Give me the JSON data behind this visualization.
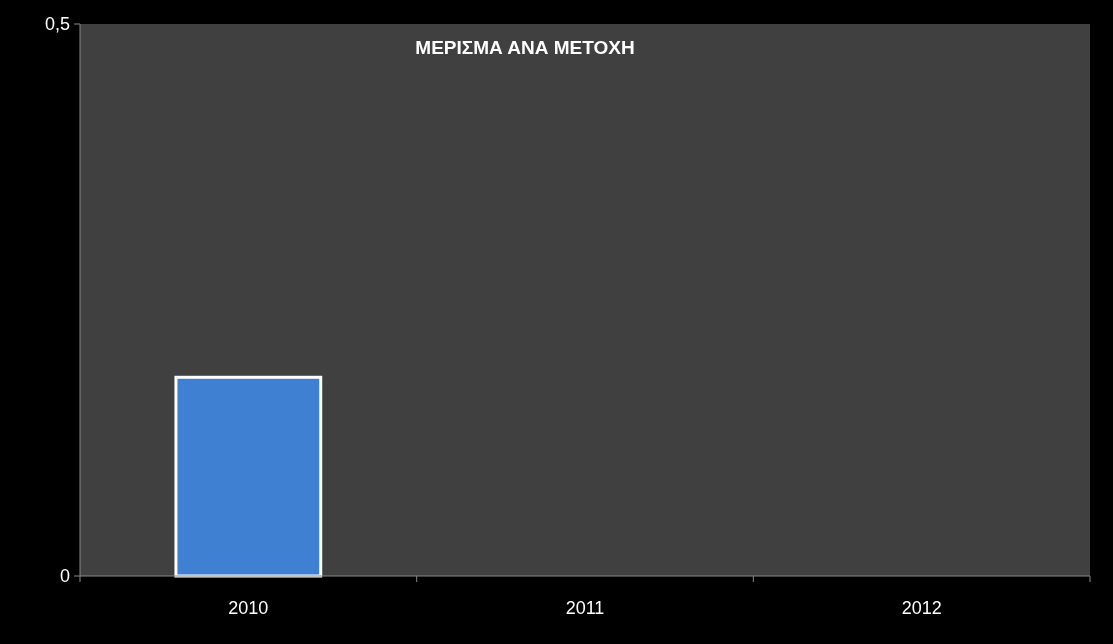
{
  "chart_data": {
    "type": "bar",
    "title": "ΜΕΡΙΣΜΑ ΑΝΑ ΜΕΤΟΧΗ",
    "categories": [
      "2010",
      "2011",
      "2012"
    ],
    "values": [
      0.18,
      0,
      0
    ],
    "color": "#3f80d2",
    "ylim": [
      0,
      0.5
    ],
    "yticks": [
      0,
      {
        "value": 0.5,
        "label": "0,5"
      }
    ],
    "grid": false
  }
}
